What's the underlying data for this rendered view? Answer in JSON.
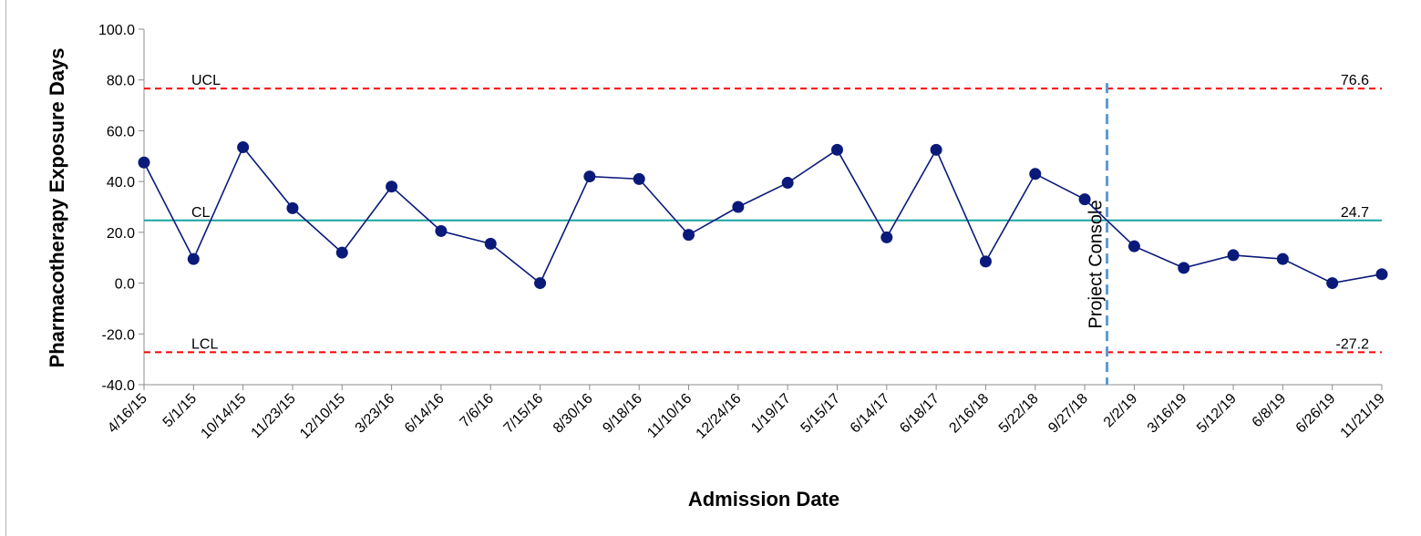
{
  "chart_data": {
    "type": "line",
    "xlabel": "Admission Date",
    "ylabel": "Pharmacotherapy Exposure Days",
    "ylim": [
      -40,
      100
    ],
    "yticks": [
      "100.0",
      "80.0",
      "60.0",
      "40.0",
      "20.0",
      "0.0",
      "-20.0",
      "-40.0"
    ],
    "categories": [
      "4/16/15",
      "5/1/15",
      "10/14/15",
      "11/23/15",
      "12/10/15",
      "3/23/16",
      "6/14/16",
      "7/6/16",
      "7/15/16",
      "8/30/16",
      "9/18/16",
      "11/10/16",
      "12/24/16",
      "1/19/17",
      "5/15/17",
      "6/14/17",
      "6/18/17",
      "2/16/18",
      "5/22/18",
      "9/27/18",
      "2/2/19",
      "3/16/19",
      "5/12/19",
      "6/8/19",
      "6/26/19",
      "11/21/19"
    ],
    "series": [
      {
        "color": "#0a1a7a",
        "values": [
          47.5,
          9.5,
          53.5,
          29.5,
          12.0,
          38.0,
          20.5,
          15.5,
          0.0,
          42.0,
          41.0,
          19.0,
          30.0,
          39.5,
          52.5,
          18.0,
          52.5,
          8.5,
          43.0,
          33.0,
          14.5,
          6.0,
          11.0,
          9.5,
          0.0,
          3.5
        ]
      }
    ],
    "reference_lines": [
      {
        "label": "UCL",
        "value": 76.6,
        "value_label": "76.6",
        "color": "#ff0000",
        "style": "dashed"
      },
      {
        "label": "CL",
        "value": 24.7,
        "value_label": "24.7",
        "color": "#1aa3a3",
        "style": "solid"
      },
      {
        "label": "LCL",
        "value": -27.2,
        "value_label": "-27.2",
        "color": "#ff0000",
        "style": "dashed"
      }
    ],
    "annotation": {
      "label": "Project Console",
      "after_category": "9/27/18",
      "color": "#5b9bd5",
      "style": "dashed"
    },
    "grid": false,
    "legend": "none"
  }
}
